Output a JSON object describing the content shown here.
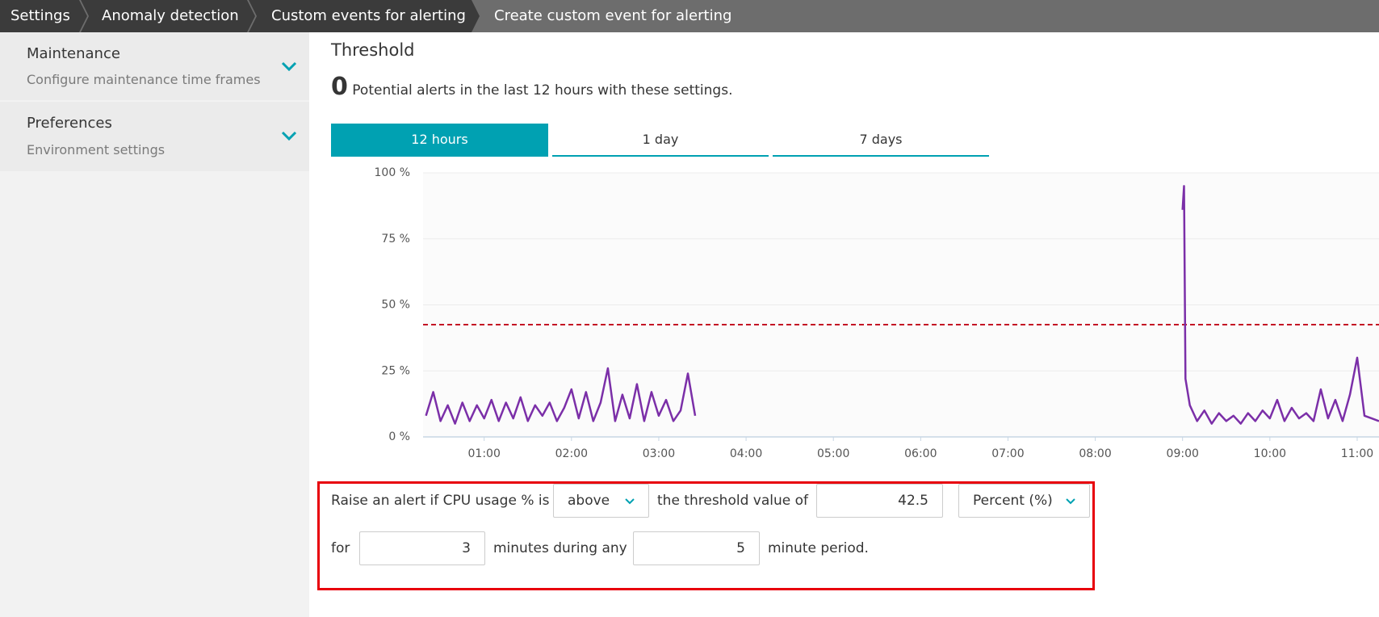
{
  "breadcrumbs": [
    "Settings",
    "Anomaly detection",
    "Custom events for alerting",
    "Create custom event for alerting"
  ],
  "sidebar": [
    {
      "title": "Maintenance",
      "subtitle": "Configure maintenance time frames"
    },
    {
      "title": "Preferences",
      "subtitle": "Environment settings"
    }
  ],
  "section": {
    "title": "Threshold",
    "alert_count": 0,
    "alert_text": "Potential alerts in the last 12 hours with these settings."
  },
  "tabs": [
    "12 hours",
    "1 day",
    "7 days"
  ],
  "chart_data": {
    "type": "line",
    "x": [
      "00:20",
      "00:25",
      "00:30",
      "00:35",
      "00:40",
      "00:45",
      "00:50",
      "00:55",
      "01:00",
      "01:05",
      "01:10",
      "01:15",
      "01:20",
      "01:25",
      "01:30",
      "01:35",
      "01:40",
      "01:45",
      "01:50",
      "01:55",
      "02:00",
      "02:05",
      "02:10",
      "02:15",
      "02:20",
      "02:25",
      "02:30",
      "02:35",
      "02:40",
      "02:45",
      "02:50",
      "02:55",
      "03:00",
      "03:05",
      "03:10",
      "03:15",
      "03:20",
      "03:25",
      "03:30",
      "09:00",
      "09:01",
      "09:02",
      "09:05",
      "09:10",
      "09:15",
      "09:20",
      "09:25",
      "09:30",
      "09:35",
      "09:40",
      "09:45",
      "09:50",
      "09:55",
      "10:00",
      "10:05",
      "10:10",
      "10:15",
      "10:20",
      "10:25",
      "10:30",
      "10:35",
      "10:40",
      "10:45",
      "10:50",
      "10:55",
      "11:00",
      "11:05",
      "11:10",
      "11:15"
    ],
    "series": [
      {
        "name": "CPU usage %",
        "color": "#7b2fa8",
        "values": [
          8,
          17,
          6,
          12,
          5,
          13,
          6,
          12,
          7,
          14,
          6,
          13,
          7,
          15,
          6,
          12,
          8,
          13,
          6,
          11,
          18,
          7,
          17,
          6,
          13,
          26,
          6,
          16,
          7,
          20,
          6,
          17,
          8,
          14,
          6,
          10,
          24,
          8,
          null,
          86,
          95,
          22,
          12,
          6,
          10,
          5,
          9,
          6,
          8,
          5,
          9,
          6,
          10,
          7,
          14,
          6,
          11,
          7,
          9,
          6,
          18,
          7,
          14,
          6,
          16,
          30,
          8,
          7,
          6
        ]
      }
    ],
    "threshold": 42.5,
    "xlim": [
      "00:18",
      "11:15"
    ],
    "xticks": [
      "01:00",
      "02:00",
      "03:00",
      "04:00",
      "05:00",
      "06:00",
      "07:00",
      "08:00",
      "09:00",
      "10:00",
      "11:00"
    ],
    "ylim": [
      0,
      100
    ],
    "yticks": [
      {
        "value": 0,
        "label": "0 %"
      },
      {
        "value": 25,
        "label": "25 %"
      },
      {
        "value": 50,
        "label": "50 %"
      },
      {
        "value": 75,
        "label": "75 %"
      },
      {
        "value": 100,
        "label": "100 %"
      }
    ],
    "grid": true
  },
  "form": {
    "prefix": "Raise an alert if CPU usage % is",
    "condition": "above",
    "threshold_text": "the threshold value of",
    "threshold_value": "42.5",
    "unit": "Percent (%)",
    "for_text": "for",
    "minutes": "3",
    "during_text": "minutes during any",
    "period": "5",
    "suffix": "minute period."
  }
}
